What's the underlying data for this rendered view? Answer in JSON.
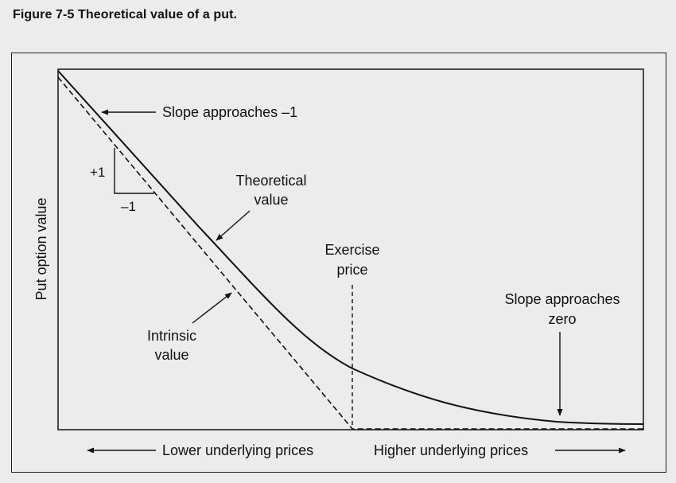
{
  "caption": "Figure 7-5  Theoretical value of a put.",
  "axes": {
    "ylabel": "Put option value",
    "xlabel_left": "Lower underlying prices",
    "xlabel_right": "Higher underlying prices"
  },
  "annotations": {
    "slope_minus_one": "Slope approaches –1",
    "rise": "+1",
    "run": "–1",
    "theoretical_line1": "Theoretical",
    "theoretical_line2": "value",
    "exercise_line1": "Exercise",
    "exercise_line2": "price",
    "intrinsic_line1": "Intrinsic",
    "intrinsic_line2": "value",
    "slope_zero_line1": "Slope approaches",
    "slope_zero_line2": "zero"
  },
  "colors": {
    "background": "#ececec",
    "ink": "#111111"
  }
}
